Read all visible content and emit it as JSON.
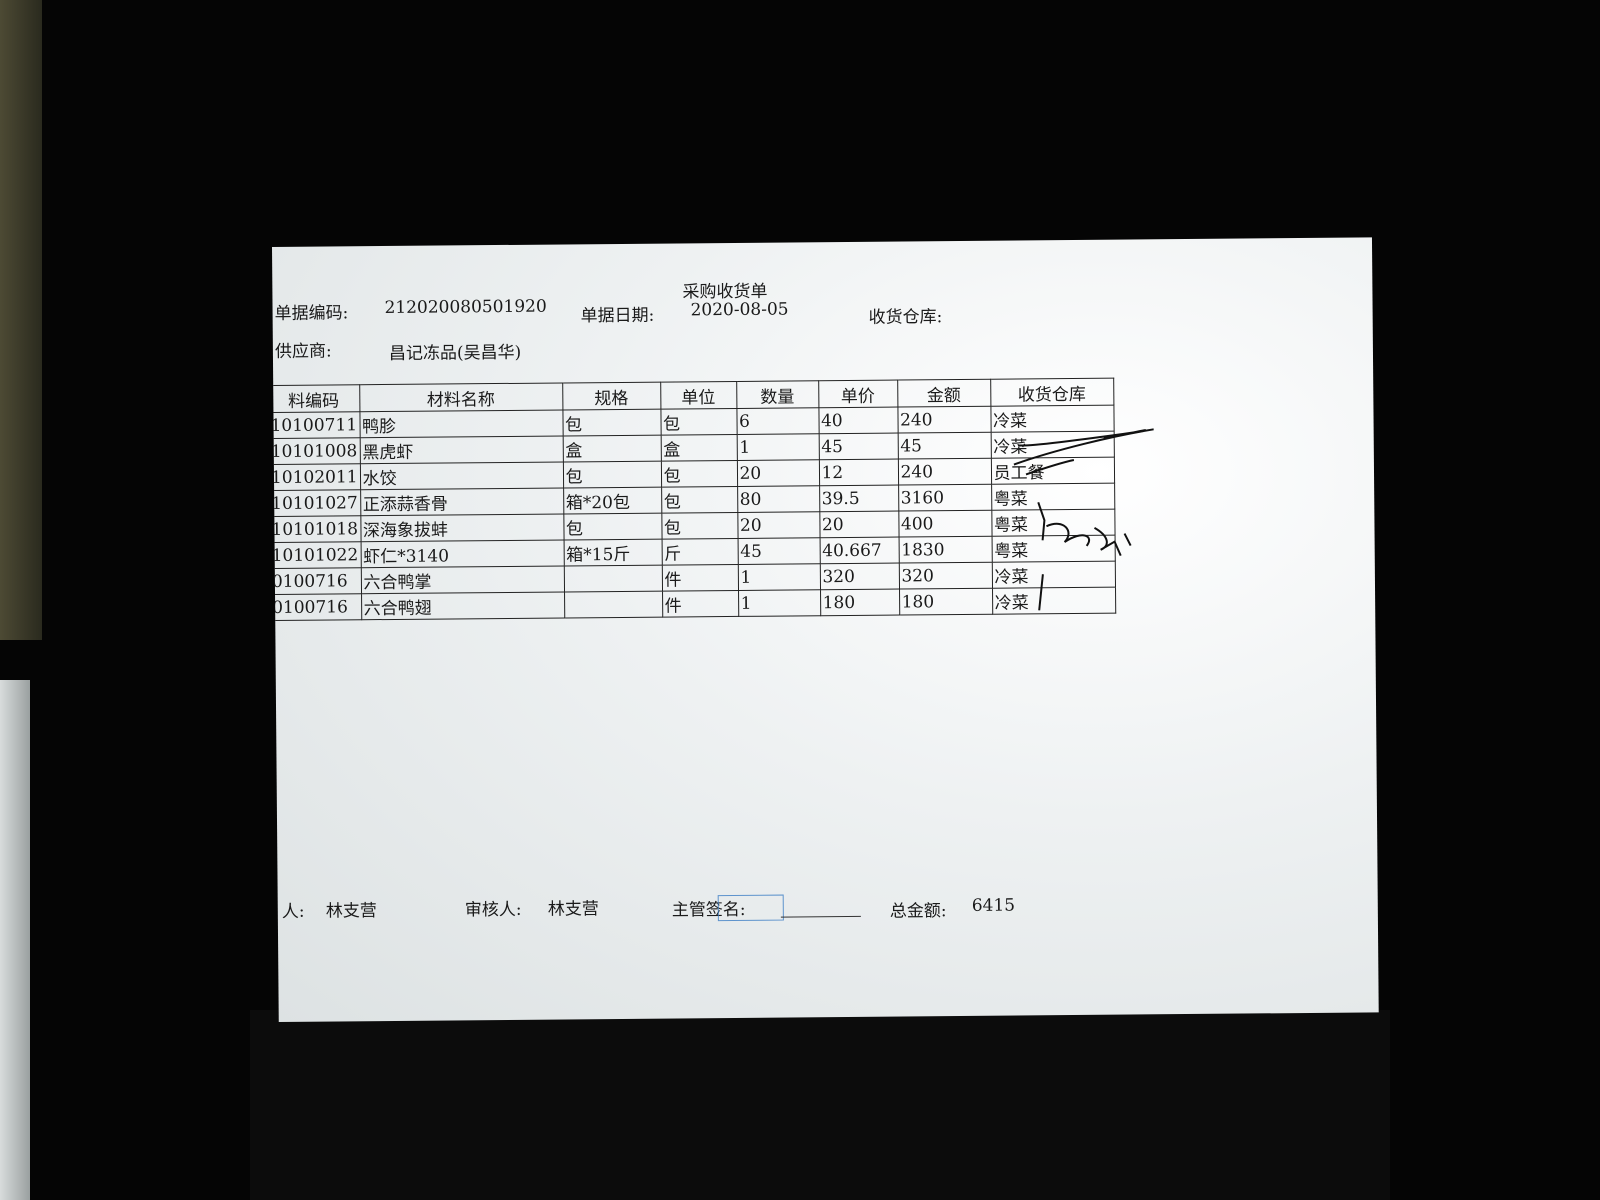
{
  "header": {
    "title": "采购收货单",
    "doc_no_label": "单据编码:",
    "doc_no": "212020080501920",
    "date_label": "单据日期:",
    "date": "2020-08-05",
    "warehouse_label": "收货仓库:",
    "supplier_label": "供应商:",
    "supplier": "昌记冻品(吴昌华)"
  },
  "table": {
    "columns": [
      "料编码",
      "材料名称",
      "规格",
      "单位",
      "数量",
      "单价",
      "金额",
      "收货仓库"
    ],
    "rows": [
      [
        "10100711",
        "鸭胗",
        "包",
        "包",
        "6",
        "40",
        "240",
        "冷菜"
      ],
      [
        "10101008",
        "黑虎虾",
        "盒",
        "盒",
        "1",
        "45",
        "45",
        "冷菜"
      ],
      [
        "10102011",
        "水饺",
        "包",
        "包",
        "20",
        "12",
        "240",
        "员工餐"
      ],
      [
        "10101027",
        "正添蒜香骨",
        "箱*20包",
        "包",
        "80",
        "39.5",
        "3160",
        "粤菜"
      ],
      [
        "10101018",
        "深海象拔蚌",
        "包",
        "包",
        "20",
        "20",
        "400",
        "粤菜"
      ],
      [
        "10101022",
        "虾仁*3140",
        "箱*15斤",
        "斤",
        "45",
        "40.667",
        "1830",
        "粤菜"
      ],
      [
        "0100716",
        "六合鸭掌",
        null,
        "件",
        "1",
        "320",
        "320",
        "冷菜"
      ],
      [
        "0100716",
        "六合鸭翅",
        null,
        "件",
        "1",
        "180",
        "180",
        "冷菜"
      ]
    ]
  },
  "footer": {
    "maker_label": "人:",
    "maker": "林支营",
    "reviewer_label": "审核人:",
    "reviewer": "林支营",
    "manager_label": "主管签名:",
    "total_label": "总金额:",
    "total": "6415"
  }
}
